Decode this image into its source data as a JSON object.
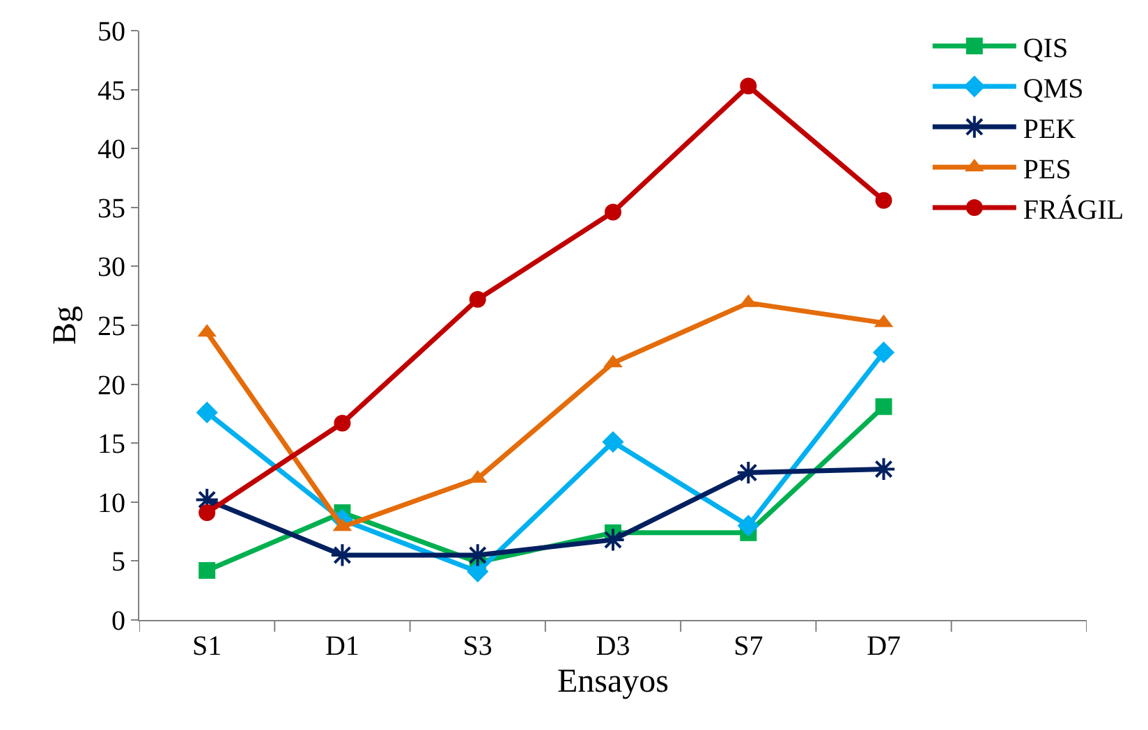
{
  "chart_data": {
    "type": "line",
    "xlabel": "Ensayos",
    "ylabel": "Bg",
    "categories": [
      "S1",
      "D1",
      "S3",
      "D3",
      "S7",
      "D7",
      null
    ],
    "ylim": [
      0,
      50
    ],
    "yticks": [
      0,
      5,
      10,
      15,
      20,
      25,
      30,
      35,
      40,
      45,
      50
    ],
    "legend": "top right",
    "series": [
      {
        "name": "QIS",
        "color": "#00b050",
        "marker": "square",
        "values": [
          4.2,
          9.1,
          4.9,
          7.4,
          7.4,
          18.1,
          null
        ]
      },
      {
        "name": "QMS",
        "color": "#00b0f0",
        "marker": "diamond",
        "values": [
          17.6,
          8.5,
          4.1,
          15.1,
          8.0,
          22.7,
          null
        ]
      },
      {
        "name": "PEK",
        "color": "#002060",
        "marker": "cross",
        "values": [
          10.2,
          5.5,
          5.5,
          6.8,
          12.5,
          12.8,
          null
        ]
      },
      {
        "name": "PES",
        "color": "#e46c0a",
        "marker": "triangle",
        "values": [
          24.4,
          7.9,
          12.0,
          21.8,
          26.9,
          25.2,
          null
        ]
      },
      {
        "name": "FRÁGIL",
        "color": "#c00000",
        "marker": "circle",
        "values": [
          9.1,
          16.7,
          27.2,
          34.6,
          45.3,
          35.6,
          null
        ]
      }
    ]
  }
}
